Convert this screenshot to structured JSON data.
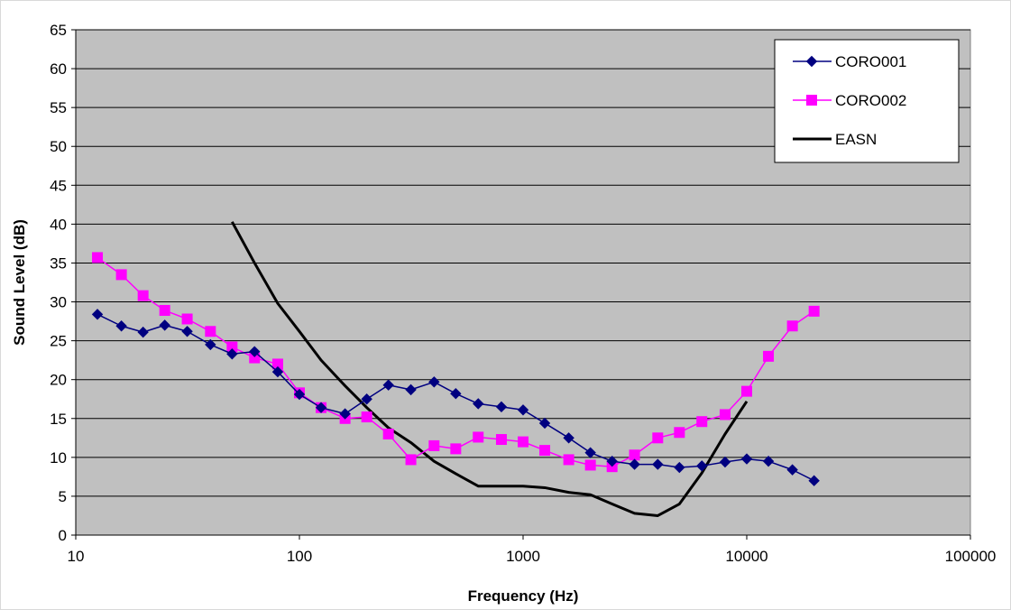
{
  "chart_data": {
    "type": "line",
    "xlabel": "Frequency (Hz)",
    "ylabel": "Sound Level (dB)",
    "x_scale": "log",
    "xlim": [
      10,
      100000
    ],
    "ylim": [
      0,
      65
    ],
    "x_ticks": [
      10,
      100,
      1000,
      10000,
      100000
    ],
    "x_tick_labels": [
      "10",
      "100",
      "1000",
      "10000",
      "100000"
    ],
    "y_ticks": [
      0,
      5,
      10,
      15,
      20,
      25,
      30,
      35,
      40,
      45,
      50,
      55,
      60,
      65
    ],
    "y_tick_labels": [
      "0",
      "5",
      "10",
      "15",
      "20",
      "25",
      "30",
      "35",
      "40",
      "45",
      "50",
      "55",
      "60",
      "65"
    ],
    "grid": "horizontal",
    "plot_background": "#c0c0c0",
    "legend_position": "top-right",
    "series": [
      {
        "name": "CORO001",
        "color": "#000080",
        "marker": "diamond",
        "x": [
          12.5,
          16,
          20,
          25,
          31.5,
          40,
          50,
          63,
          80,
          100,
          125,
          160,
          200,
          250,
          315,
          400,
          500,
          630,
          800,
          1000,
          1250,
          1600,
          2000,
          2500,
          3150,
          4000,
          5000,
          6300,
          8000,
          10000,
          12500,
          16000,
          20000
        ],
        "y": [
          28.4,
          26.9,
          26.1,
          27.0,
          26.2,
          24.5,
          23.3,
          23.6,
          21.0,
          18.1,
          16.4,
          15.6,
          17.5,
          19.3,
          18.7,
          19.7,
          18.2,
          16.9,
          16.5,
          16.1,
          14.4,
          12.5,
          10.6,
          9.5,
          9.1,
          9.1,
          8.7,
          8.9,
          9.4,
          9.8,
          9.5,
          8.4,
          7.0
        ]
      },
      {
        "name": "CORO002",
        "color": "#ff00ff",
        "marker": "square",
        "x": [
          12.5,
          16,
          20,
          25,
          31.5,
          40,
          50,
          63,
          80,
          100,
          125,
          160,
          200,
          250,
          315,
          400,
          500,
          630,
          800,
          1000,
          1250,
          1600,
          2000,
          2500,
          3150,
          4000,
          5000,
          6300,
          8000,
          10000,
          12500,
          16000,
          20000
        ],
        "y": [
          35.7,
          33.5,
          30.8,
          28.9,
          27.8,
          26.2,
          24.2,
          22.8,
          22.0,
          18.3,
          16.4,
          15.0,
          15.2,
          13.0,
          9.7,
          11.5,
          11.1,
          12.6,
          12.3,
          12.0,
          10.9,
          9.7,
          9.0,
          8.8,
          10.3,
          12.5,
          13.2,
          14.6,
          15.5,
          18.5,
          23.0,
          26.9,
          28.8
        ]
      },
      {
        "name": "EASN",
        "color": "#000000",
        "marker": "none",
        "x": [
          50,
          63,
          80,
          100,
          125,
          160,
          200,
          250,
          315,
          400,
          500,
          630,
          800,
          1000,
          1250,
          1600,
          2000,
          2500,
          3150,
          4000,
          5000,
          6300,
          8000,
          10000
        ],
        "y": [
          40.3,
          35.0,
          29.8,
          26.2,
          22.5,
          19.2,
          16.4,
          13.8,
          11.9,
          9.5,
          7.9,
          6.3,
          6.3,
          6.3,
          6.1,
          5.5,
          5.2,
          4.0,
          2.8,
          2.5,
          4.0,
          8.0,
          13.0,
          17.2
        ]
      }
    ]
  }
}
